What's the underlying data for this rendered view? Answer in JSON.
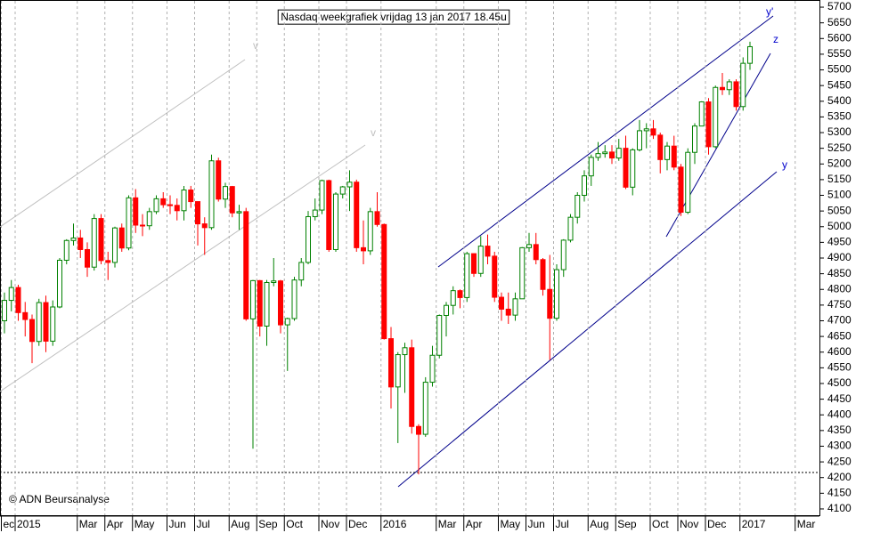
{
  "chart_data": {
    "type": "candlestick",
    "title": "Nasdaq weekgrafiek vrijdag 13 jan 2017 18.45u",
    "source": "© ADN Beursanalyse",
    "annotations": [
      "y'",
      "z",
      "y",
      "v",
      "v"
    ],
    "categories": [
      "ec",
      null,
      "2015",
      null,
      null,
      null,
      null,
      null,
      null,
      null,
      null,
      "Mar",
      null,
      null,
      null,
      "Apr",
      null,
      null,
      null,
      "May",
      null,
      null,
      null,
      null,
      "Jun",
      null,
      null,
      null,
      "Jul",
      null,
      null,
      null,
      null,
      "Aug",
      null,
      null,
      null,
      "Sep",
      null,
      null,
      null,
      "Oct",
      null,
      null,
      null,
      null,
      "Nov",
      null,
      null,
      null,
      "Dec",
      null,
      null,
      null,
      null,
      "2016",
      null,
      null,
      null,
      null,
      null,
      null,
      null,
      "Mar",
      null,
      null,
      null,
      "Apr",
      null,
      null,
      null,
      null,
      "May",
      null,
      null,
      null,
      "Jun",
      null,
      null,
      null,
      "Jul",
      null,
      null,
      null,
      null,
      "Aug",
      null,
      null,
      null,
      "Sep",
      null,
      null,
      null,
      null,
      "Oct",
      null,
      null,
      null,
      "Nov",
      null,
      null,
      null,
      "Dec",
      null,
      null,
      null,
      null,
      "2017",
      null,
      null,
      null,
      null,
      null,
      null,
      null,
      "Mar",
      null,
      null
    ],
    "open": [
      4700,
      4765,
      4806,
      4726,
      4704,
      4634,
      4758,
      4635,
      4744,
      4893,
      4956,
      4964,
      4927,
      4871,
      5026,
      4892,
      4886,
      4996,
      4932,
      5092,
      5005,
      5003,
      5048,
      5089,
      5070,
      5068,
      5051,
      5117,
      5080,
      5009,
      4997,
      5210,
      5088,
      5128,
      5044,
      5048,
      4706,
      4828,
      4683,
      4822,
      4827,
      4687,
      4707,
      4830,
      4886,
      5032,
      5053,
      5147,
      4927,
      5104,
      5127,
      5142,
      4933,
      4923,
      5048,
      5007,
      4643,
      4489,
      4592,
      4614,
      4363,
      4338,
      4504,
      4590,
      4717,
      4749,
      4796,
      4774,
      4914,
      4851,
      4938,
      4906,
      4775,
      4737,
      4718,
      4770,
      4933,
      4943,
      4895,
      4800,
      4708,
      4863,
      4957,
      5030,
      5100,
      5162,
      5221,
      5233,
      5238,
      5219,
      5250,
      5126,
      5245,
      5306,
      5312,
      5292,
      5214,
      5257,
      5190,
      5046,
      5237,
      5321,
      5398,
      5255,
      5444,
      5437,
      5462,
      5383,
      5521,
      null,
      null,
      null,
      null,
      null,
      null,
      null,
      null,
      null
    ],
    "high": [
      4790,
      4830,
      4815,
      4760,
      4720,
      4770,
      4780,
      4765,
      4900,
      4960,
      5010,
      4990,
      4950,
      5040,
      5040,
      4920,
      5000,
      5010,
      5100,
      5120,
      5040,
      5060,
      5100,
      5110,
      5100,
      5090,
      5130,
      5130,
      5080,
      5030,
      5230,
      5220,
      5140,
      5130,
      5070,
      5060,
      4830,
      4830,
      4830,
      4900,
      4830,
      4710,
      4840,
      4900,
      5050,
      5090,
      5150,
      5150,
      5110,
      5130,
      5180,
      5150,
      5020,
      5060,
      5110,
      5010,
      4680,
      4600,
      4630,
      4640,
      4370,
      4520,
      4620,
      4720,
      4760,
      4810,
      4800,
      4920,
      4915,
      4970,
      4975,
      4920,
      4790,
      4790,
      4790,
      4935,
      4980,
      4980,
      4900,
      4910,
      4880,
      4960,
      5040,
      5110,
      5180,
      5230,
      5270,
      5260,
      5260,
      5280,
      5290,
      5250,
      5340,
      5330,
      5340,
      5300,
      5270,
      5290,
      5200,
      5250,
      5330,
      5400,
      5410,
      5450,
      5490,
      5470,
      5470,
      5540,
      5590,
      null,
      null,
      null,
      null,
      null,
      null,
      null,
      null,
      null
    ],
    "low": [
      4660,
      4730,
      4700,
      4650,
      4565,
      4620,
      4600,
      4620,
      4740,
      4880,
      4940,
      4900,
      4840,
      4860,
      4880,
      4830,
      4870,
      4920,
      4925,
      4980,
      4970,
      4990,
      5040,
      5060,
      5040,
      5020,
      5020,
      5060,
      4940,
      4910,
      4990,
      5080,
      5060,
      5030,
      4990,
      4700,
      4292,
      4650,
      4620,
      4810,
      4660,
      4540,
      4700,
      4810,
      4880,
      5020,
      5040,
      4920,
      4920,
      5090,
      5050,
      4920,
      4880,
      4910,
      5000,
      4640,
      4420,
      4310,
      4470,
      4340,
      4210,
      4330,
      4490,
      4580,
      4650,
      4720,
      4740,
      4760,
      4840,
      4840,
      4880,
      4760,
      4700,
      4690,
      4700,
      4770,
      4920,
      4880,
      4780,
      4575,
      4700,
      4840,
      4950,
      5010,
      5080,
      5130,
      5210,
      5220,
      5200,
      5210,
      5120,
      5100,
      5240,
      5250,
      5280,
      5170,
      5180,
      5180,
      5034,
      5040,
      5200,
      5320,
      5230,
      5250,
      5420,
      5420,
      5370,
      5370,
      5500,
      null,
      null,
      null,
      null,
      null,
      null,
      null,
      null,
      null
    ],
    "close": [
      4765,
      4806,
      4726,
      4704,
      4634,
      4758,
      4635,
      4744,
      4893,
      4956,
      4964,
      4927,
      4871,
      5026,
      4892,
      4886,
      4996,
      4932,
      5092,
      5005,
      5003,
      5048,
      5089,
      5070,
      5068,
      5051,
      5117,
      5080,
      5009,
      4997,
      5210,
      5088,
      5128,
      5044,
      5048,
      4706,
      4828,
      4683,
      4822,
      4827,
      4687,
      4707,
      4830,
      4886,
      5032,
      5053,
      5147,
      4927,
      5104,
      5127,
      5142,
      4933,
      4923,
      5048,
      5007,
      4643,
      4489,
      4592,
      4614,
      4363,
      4338,
      4504,
      4590,
      4717,
      4749,
      4796,
      4774,
      4914,
      4851,
      4938,
      4906,
      4775,
      4737,
      4718,
      4770,
      4933,
      4943,
      4895,
      4800,
      4708,
      4863,
      4957,
      5030,
      5100,
      5162,
      5221,
      5233,
      5238,
      5219,
      5250,
      5126,
      5245,
      5306,
      5312,
      5292,
      5214,
      5257,
      5190,
      5046,
      5237,
      5321,
      5398,
      5255,
      5444,
      5437,
      5462,
      5383,
      5521,
      5574,
      null,
      null,
      null,
      null,
      null,
      null,
      null,
      null,
      null
    ],
    "up_color": "#008000",
    "down_color": "#ff0000",
    "ylim": [
      4080,
      5720
    ],
    "yticks": [
      4100,
      4150,
      4200,
      4250,
      4300,
      4350,
      4400,
      4450,
      4500,
      4550,
      4600,
      4650,
      4700,
      4750,
      4800,
      4850,
      4900,
      4950,
      5000,
      5050,
      5100,
      5150,
      5200,
      5250,
      5300,
      5350,
      5400,
      5450,
      5500,
      5550,
      5600,
      5650,
      5700
    ],
    "grid": true
  }
}
